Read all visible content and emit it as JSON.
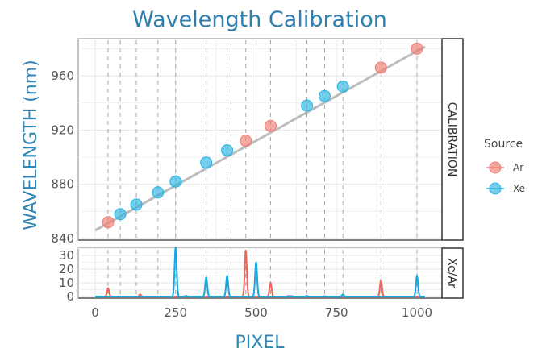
{
  "chart_data": [
    {
      "panel": "CALIBRATION",
      "type": "scatter",
      "title": "Wavelength Calibration",
      "xlabel": "PIXEL",
      "ylabel": "WAVELENGTH (nm)",
      "xlim": [
        -40,
        1090
      ],
      "ylim": [
        840,
        988
      ],
      "x_ticks": [
        0,
        250,
        500,
        750,
        1000
      ],
      "y_ticks": [
        840,
        880,
        920,
        960
      ],
      "grid": true,
      "fit_line": {
        "x": [
          0,
          1025
        ],
        "y": [
          846,
          981.5
        ],
        "color": "#bdbdbd"
      },
      "vertical_reference_lines": [
        40,
        78,
        128,
        195,
        250,
        345,
        410,
        468,
        545,
        658,
        713,
        770,
        888,
        1000
      ],
      "series": [
        {
          "name": "Ar",
          "color": "#f07b72",
          "points": [
            [
              40,
              852
            ],
            [
              468,
              912
            ],
            [
              545,
              923
            ],
            [
              888,
              966
            ],
            [
              1000,
              980
            ]
          ]
        },
        {
          "name": "Xe",
          "color": "#28b4e0",
          "points": [
            [
              78,
              858
            ],
            [
              128,
              865
            ],
            [
              195,
              874
            ],
            [
              250,
              882
            ],
            [
              345,
              896
            ],
            [
              410,
              905
            ],
            [
              658,
              938
            ],
            [
              713,
              945
            ],
            [
              770,
              952
            ]
          ]
        }
      ]
    },
    {
      "panel": "Xe/Ar",
      "type": "line",
      "xlabel": "PIXEL",
      "ylabel": "",
      "xlim": [
        -40,
        1090
      ],
      "ylim": [
        0,
        36
      ],
      "x_ticks": [
        0,
        250,
        500,
        750,
        1000
      ],
      "y_ticks": [
        0,
        10,
        20,
        30
      ],
      "grid": true,
      "series": [
        {
          "name": "Ar",
          "color": "#f0665c",
          "peaks": [
            [
              40,
              6
            ],
            [
              140,
              1.5
            ],
            [
              468,
              34
            ],
            [
              545,
              10
            ],
            [
              600,
              0.5
            ],
            [
              888,
              12
            ]
          ]
        },
        {
          "name": "Xe",
          "color": "#17a8de",
          "peaks": [
            [
              250,
              36
            ],
            [
              283,
              0.5
            ],
            [
              345,
              14
            ],
            [
              410,
              15
            ],
            [
              500,
              25
            ],
            [
              610,
              0.4
            ],
            [
              658,
              0.5
            ],
            [
              713,
              0.3
            ],
            [
              770,
              1.5
            ],
            [
              1000,
              15
            ]
          ]
        }
      ]
    }
  ],
  "legend": {
    "title": "Source",
    "position": "right",
    "items": [
      {
        "label": "Ar",
        "color": "#f07b72"
      },
      {
        "label": "Xe",
        "color": "#28b4e0"
      }
    ]
  },
  "strips": {
    "top": "CALIBRATION",
    "bottom": "Xe/Ar"
  }
}
